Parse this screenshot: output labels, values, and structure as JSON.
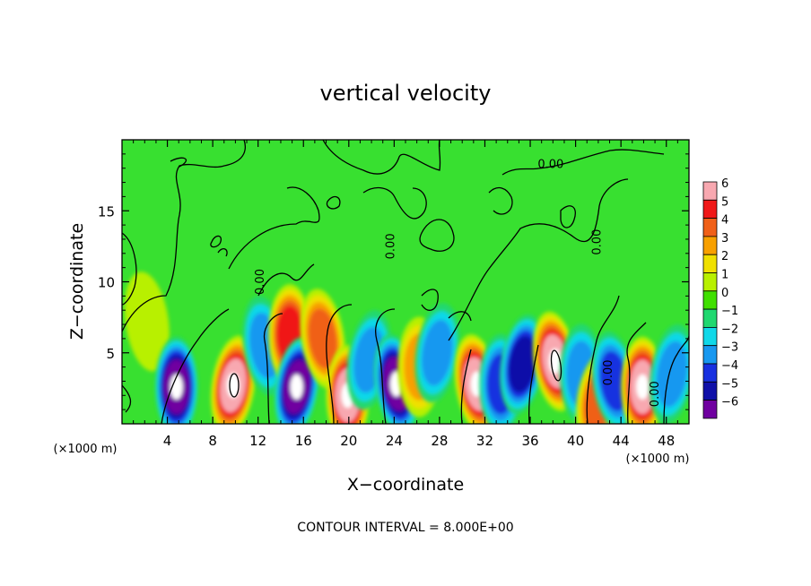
{
  "chart_data": {
    "type": "heatmap",
    "title": "vertical velocity",
    "xlabel": "X−coordinate",
    "ylabel": "Z−coordinate",
    "x_unit": "(×1000 m)",
    "y_unit": "(×1000 m)",
    "xlim": [
      0,
      50
    ],
    "ylim": [
      0,
      20
    ],
    "x_ticks": [
      4,
      8,
      12,
      16,
      20,
      24,
      28,
      32,
      36,
      40,
      44,
      48
    ],
    "x_tick_labels": [
      "4",
      "8",
      "12",
      "16",
      "20",
      "24",
      "28",
      "32",
      "36",
      "40",
      "44",
      "48"
    ],
    "y_ticks": [
      5,
      10,
      15
    ],
    "y_tick_labels": [
      "5",
      "10",
      "15"
    ],
    "colorbar": {
      "levels": [
        6,
        5,
        4,
        3,
        2,
        1,
        0,
        -1,
        -2,
        -3,
        -4,
        -5,
        -6
      ],
      "labels": [
        "6",
        "5",
        "4",
        "3",
        "2",
        "1",
        "0",
        "−1",
        "−2",
        "−3",
        "−4",
        "−5",
        "−6"
      ],
      "colors": [
        "#f8a8b0",
        "#f01818",
        "#f06018",
        "#f8a000",
        "#f0e000",
        "#b8f000",
        "#40e000",
        "#20d870",
        "#10d8e8",
        "#1898f0",
        "#1830e0",
        "#1010a8",
        "#7000a0"
      ]
    },
    "background_color": "#38e030",
    "contour_label": "0.00",
    "contour_interval_text": "CONTOUR INTERVAL = 8.000E+00",
    "features": [
      {
        "x": 2.2,
        "z": 7.2,
        "w": 1.0
      },
      {
        "x": 4.8,
        "z": 2.6,
        "w": -5.5
      },
      {
        "x": 9.8,
        "z": 2.7,
        "w": 6.0
      },
      {
        "x": 12.6,
        "z": 5.5,
        "w": -3.0
      },
      {
        "x": 14.8,
        "z": 6.3,
        "w": 4.5
      },
      {
        "x": 15.4,
        "z": 2.6,
        "w": -6.0
      },
      {
        "x": 17.7,
        "z": 6.0,
        "w": 3.5
      },
      {
        "x": 19.9,
        "z": 2.0,
        "w": 5.5
      },
      {
        "x": 21.8,
        "z": 4.5,
        "w": -3.0
      },
      {
        "x": 24.2,
        "z": 2.8,
        "w": -5.5
      },
      {
        "x": 26.2,
        "z": 4.0,
        "w": 3.0
      },
      {
        "x": 27.8,
        "z": 5.0,
        "w": -2.5
      },
      {
        "x": 31.3,
        "z": 2.8,
        "w": 5.5
      },
      {
        "x": 33.4,
        "z": 2.8,
        "w": -3.5
      },
      {
        "x": 35.3,
        "z": 4.2,
        "w": -5.0
      },
      {
        "x": 38.2,
        "z": 4.4,
        "w": 6.0
      },
      {
        "x": 40.5,
        "z": 3.5,
        "w": -3.0
      },
      {
        "x": 42.0,
        "z": 1.6,
        "w": 4.0
      },
      {
        "x": 43.4,
        "z": 3.0,
        "w": -3.5
      },
      {
        "x": 45.9,
        "z": 2.6,
        "w": 5.5
      },
      {
        "x": 48.5,
        "z": 3.5,
        "w": -3.0
      }
    ],
    "zero_contour_labels": [
      {
        "x": 37.8,
        "z": 18.0
      },
      {
        "x": 24.0,
        "z": 12.5
      },
      {
        "x": 42.2,
        "z": 12.8
      },
      {
        "x": 12.5,
        "z": 10.0
      },
      {
        "x": 43.2,
        "z": 3.6
      },
      {
        "x": 47.3,
        "z": 2.1
      }
    ]
  }
}
